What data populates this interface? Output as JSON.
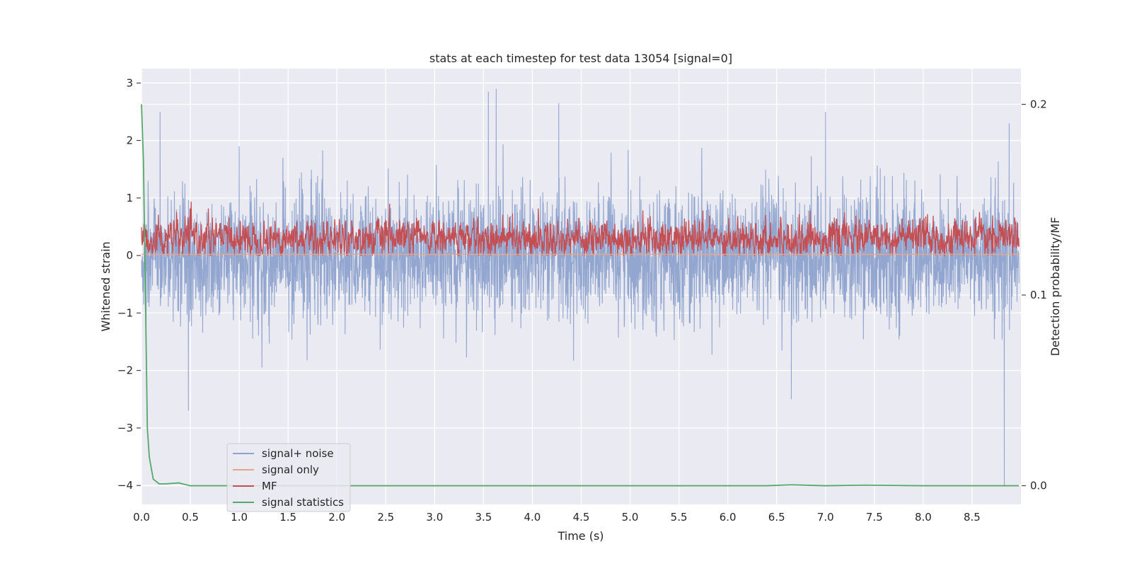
{
  "chart_data": {
    "type": "line",
    "title": "stats at each timestep for test data 13054 [signal=0]",
    "xlabel": "Time (s)",
    "ylabel": "Whitened strain",
    "y2label": "Detection probability/MF",
    "xlim": [
      0,
      9.0
    ],
    "ylim": [
      -4.33,
      3.25
    ],
    "y2lim": [
      -0.0098,
      0.2187
    ],
    "xticks": [
      "0.0",
      "0.5",
      "1.0",
      "1.5",
      "2.0",
      "2.5",
      "3.0",
      "3.5",
      "4.0",
      "4.5",
      "5.0",
      "5.5",
      "6.0",
      "6.5",
      "7.0",
      "7.5",
      "8.0",
      "8.5"
    ],
    "yticks": [
      "3",
      "2",
      "1",
      "0",
      "−1",
      "−2",
      "−3",
      "−4"
    ],
    "y2ticks": [
      "0.2",
      "0.1",
      "0.0"
    ],
    "grid": true,
    "legend_position": "lower-left",
    "colors": {
      "background": "#eaeaf2",
      "grid": "#ffffff",
      "signal_noise": "#8da2cc",
      "signal_only": "#e8a58a",
      "mf": "#c44e52",
      "signal_statistics": "#55a868"
    },
    "series": [
      {
        "name": "signal+ noise",
        "axis": "left",
        "description_values": "whitened strain noise, ~N(0, 0.55); range approx -4.0 to 2.9",
        "peaks": [
          [
            0.19,
            2.5
          ],
          [
            0.48,
            -2.7
          ],
          [
            1.0,
            1.9
          ],
          [
            3.55,
            2.85
          ],
          [
            3.63,
            2.9
          ],
          [
            4.27,
            2.65
          ],
          [
            6.65,
            -2.5
          ],
          [
            7.0,
            2.5
          ],
          [
            8.83,
            -4.0
          ],
          [
            8.88,
            2.3
          ]
        ]
      },
      {
        "name": "signal only",
        "axis": "left",
        "x": [
          0.0,
          8.98
        ],
        "values": [
          0.02,
          0.02
        ]
      },
      {
        "name": "MF",
        "axis": "left",
        "mean": 0.3,
        "range": [
          0.0,
          1.0
        ]
      },
      {
        "name": "signal statistics",
        "axis": "right",
        "x": [
          0.0,
          0.02,
          0.04,
          0.06,
          0.08,
          0.12,
          0.18,
          0.25,
          0.38,
          0.5,
          1.0,
          2.0,
          3.0,
          4.0,
          5.0,
          6.0,
          6.4,
          6.65,
          7.0,
          7.4,
          8.0,
          8.98
        ],
        "values": [
          0.2,
          0.17,
          0.1,
          0.03,
          0.015,
          0.0035,
          0.001,
          0.001,
          0.0015,
          0.0,
          0.0,
          0.0,
          0.0,
          0.0,
          0.0,
          0.0,
          0.0,
          0.0005,
          0.0,
          0.0003,
          0.0,
          0.0
        ]
      }
    ]
  }
}
